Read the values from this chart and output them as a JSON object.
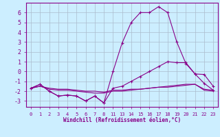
{
  "xlabel": "Windchill (Refroidissement éolien,°C)",
  "background_color": "#cceeff",
  "line_color": "#880088",
  "grid_color": "#aabbcc",
  "x_labels": [
    "0",
    "1",
    "2",
    "3",
    "4",
    "5",
    "6",
    "7",
    "8",
    "11",
    "13",
    "14",
    "15",
    "16",
    "17",
    "18",
    "19",
    "20",
    "21",
    "22",
    "23"
  ],
  "ylim": [
    -3.6,
    7.0
  ],
  "y_ticks": [
    -3,
    -2,
    -1,
    0,
    1,
    2,
    3,
    4,
    5,
    6
  ],
  "line1_y": [
    -1.7,
    -1.3,
    -2.0,
    -2.5,
    -2.4,
    -2.5,
    -3.0,
    -2.5,
    -3.2,
    0.0,
    2.9,
    5.0,
    6.0,
    6.0,
    6.6,
    6.0,
    3.0,
    0.8,
    -0.25,
    -0.3,
    -1.5
  ],
  "line2_y": [
    -1.7,
    -1.3,
    -2.0,
    -2.5,
    -2.4,
    -2.5,
    -3.0,
    -2.5,
    -3.2,
    -1.7,
    -1.5,
    -1.0,
    -0.5,
    0.0,
    0.5,
    1.0,
    0.9,
    0.9,
    -0.25,
    -1.2,
    -1.9
  ],
  "line3_y": [
    -1.7,
    -1.5,
    -1.8,
    -1.9,
    -1.9,
    -2.0,
    -2.1,
    -2.2,
    -2.2,
    -2.0,
    -2.0,
    -1.9,
    -1.8,
    -1.7,
    -1.6,
    -1.5,
    -1.4,
    -1.3,
    -1.3,
    -1.9,
    -2.0
  ],
  "line4_y": [
    -1.7,
    -1.5,
    -1.7,
    -1.8,
    -1.8,
    -1.9,
    -2.0,
    -2.0,
    -2.1,
    -1.9,
    -1.9,
    -1.8,
    -1.8,
    -1.7,
    -1.6,
    -1.6,
    -1.5,
    -1.4,
    -1.3,
    -1.8,
    -1.9
  ]
}
